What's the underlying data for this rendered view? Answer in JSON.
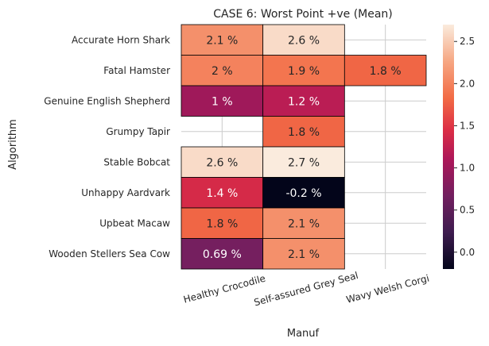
{
  "chart_data": {
    "type": "heatmap",
    "title": "CASE 6: Worst Point +ve (Mean)",
    "xlabel": "Manuf",
    "ylabel": "Algorithm",
    "x_categories": [
      "Healthy Crocodile",
      "Self-assured Grey Seal",
      "Wavy Welsh Corgi"
    ],
    "y_categories": [
      "Accurate Horn Shark",
      "Fatal Hamster",
      "Genuine English Shepherd",
      "Grumpy Tapir",
      "Stable Bobcat",
      "Unhappy Aardvark",
      "Upbeat Macaw",
      "Wooden Stellers Sea Cow"
    ],
    "values": [
      [
        2.1,
        2.6,
        null
      ],
      [
        2.0,
        1.9,
        1.8
      ],
      [
        1.0,
        1.2,
        null
      ],
      [
        null,
        1.8,
        null
      ],
      [
        2.6,
        2.7,
        null
      ],
      [
        1.4,
        -0.2,
        null
      ],
      [
        1.8,
        2.1,
        null
      ],
      [
        0.69,
        2.1,
        null
      ]
    ],
    "labels": [
      [
        "2.1 %",
        "2.6 %",
        ""
      ],
      [
        "2 %",
        "1.9 %",
        "1.8 %"
      ],
      [
        "1 %",
        "1.2 %",
        ""
      ],
      [
        "",
        "1.8 %",
        ""
      ],
      [
        "2.6 %",
        "2.7 %",
        ""
      ],
      [
        "1.4 %",
        "-0.2 %",
        ""
      ],
      [
        "1.8 %",
        "2.1 %",
        ""
      ],
      [
        "0.69 %",
        "2.1 %",
        ""
      ]
    ],
    "colorbar": {
      "vmin": -0.2,
      "vmax": 2.7,
      "ticks": [
        0.0,
        0.5,
        1.0,
        1.5,
        2.0,
        2.5
      ],
      "tick_labels": [
        "0.0",
        "0.5",
        "1.0",
        "1.5",
        "2.0",
        "2.5"
      ],
      "colormap": "rocket"
    },
    "grid": true
  }
}
